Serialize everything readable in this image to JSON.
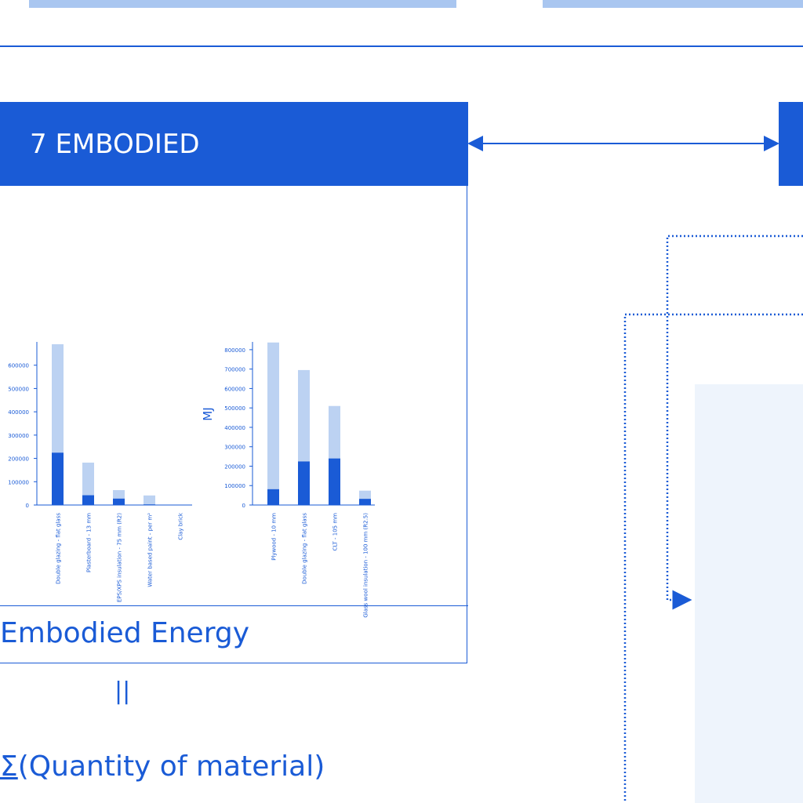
{
  "header": {
    "title": "7 EMBODIED"
  },
  "caption": "Embodied Energy",
  "equals": "||",
  "formula": {
    "sigma": "Σ",
    "text": "(Quantity of material)"
  },
  "colors": {
    "primary": "#1a5bd6",
    "light_bar": "#bcd2f2",
    "top_bar": "#a9c6f0",
    "panel_bg": "#eef4fc"
  },
  "chart_data": [
    {
      "type": "bar",
      "stacked": true,
      "categories": [
        "Double glazing - flat glass",
        "Plasterboard - 13 mm",
        "EPS/XPS insulation - 75 mm (R2)",
        "Water based paint - per m²",
        "Clay brick"
      ],
      "series": [
        {
          "values": [
            225000,
            42000,
            28000,
            3000,
            0
          ]
        },
        {
          "values": [
            465000,
            140000,
            36000,
            38000,
            0
          ]
        }
      ],
      "yticks": [
        "0",
        "100000",
        "200000",
        "300000",
        "400000",
        "500000",
        "600000"
      ],
      "ylim": [
        0,
        700000
      ]
    },
    {
      "type": "bar",
      "stacked": true,
      "categories": [
        "Plywood - 10 mm",
        "Double glazing - flat glass",
        "CLT - 105 mm",
        "Glass wool insulation - 100 mm (R2.5)"
      ],
      "series": [
        {
          "values": [
            82000,
            225000,
            240000,
            32000
          ]
        },
        {
          "values": [
            755000,
            470000,
            270000,
            42000
          ]
        }
      ],
      "ylabel": "MJ",
      "yticks": [
        "0",
        "100000",
        "200000",
        "300000",
        "400000",
        "500000",
        "600000",
        "700000",
        "800000"
      ],
      "ylim": [
        0,
        840000
      ]
    }
  ]
}
